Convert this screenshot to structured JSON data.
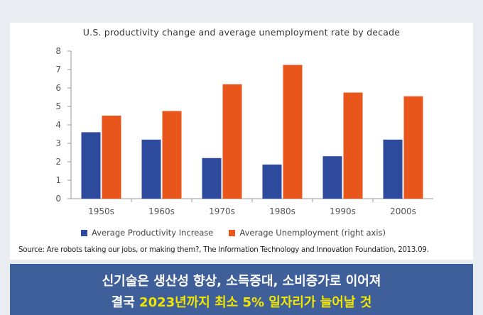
{
  "chart_data": {
    "type": "bar",
    "title": "U.S. productivity change and average unemployment rate by decade",
    "categories": [
      "1950s",
      "1960s",
      "1970s",
      "1980s",
      "1990s",
      "2000s"
    ],
    "series": [
      {
        "name": "Average Productivity Increase",
        "color": "#2e4a9c",
        "values": [
          3.6,
          3.2,
          2.2,
          1.85,
          2.3,
          3.2
        ]
      },
      {
        "name": "Average Unemployment (right axis)",
        "color": "#e8561c",
        "values": [
          4.5,
          4.75,
          6.2,
          7.25,
          5.75,
          5.55
        ]
      }
    ],
    "yticks": [
      "0",
      "1",
      "2",
      "3",
      "4",
      "5",
      "6",
      "7",
      "8"
    ],
    "ylim": [
      0,
      8
    ],
    "grid": false,
    "legend": "bottom"
  },
  "source": "Source: Are robots taking our jobs, or making them?, The Information Technology and Innovation Foundation, 2013.09.",
  "banner": {
    "line1": "신기술은 생산성 향상, 소득증대, 소비증가로 이어져",
    "line2_prefix": "결국 ",
    "line2_highlight": "2023년까지 최소 5% 일자리가 늘어날 것"
  }
}
